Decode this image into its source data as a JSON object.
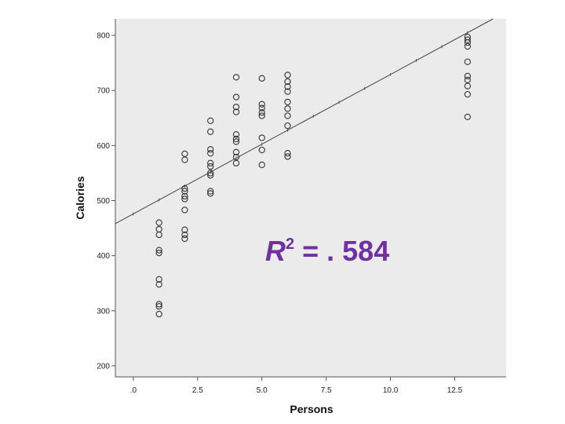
{
  "chart_data": {
    "type": "scatter",
    "xlabel": "Persons",
    "ylabel": "Calories",
    "xlim": [
      -0.7,
      14.5
    ],
    "ylim": [
      180,
      830
    ],
    "x_ticks": [
      0,
      2.5,
      5.0,
      7.5,
      10.0,
      12.5
    ],
    "x_tick_labels": [
      ".0",
      "2.5",
      "5.0",
      "7.5",
      "10.0",
      "12.5"
    ],
    "y_ticks": [
      200,
      300,
      400,
      500,
      600,
      700,
      800
    ],
    "y_tick_labels": [
      "200",
      "300",
      "400",
      "500",
      "600",
      "700",
      "800"
    ],
    "grid": false,
    "points": [
      [
        1,
        460
      ],
      [
        1,
        448
      ],
      [
        1,
        438
      ],
      [
        1,
        410
      ],
      [
        1,
        405
      ],
      [
        1,
        357
      ],
      [
        1,
        348
      ],
      [
        1,
        312
      ],
      [
        1,
        308
      ],
      [
        1,
        294
      ],
      [
        2,
        585
      ],
      [
        2,
        574
      ],
      [
        2,
        522
      ],
      [
        2,
        517
      ],
      [
        2,
        508
      ],
      [
        2,
        503
      ],
      [
        2,
        483
      ],
      [
        2,
        447
      ],
      [
        2,
        438
      ],
      [
        2,
        431
      ],
      [
        3,
        645
      ],
      [
        3,
        625
      ],
      [
        3,
        593
      ],
      [
        3,
        586
      ],
      [
        3,
        568
      ],
      [
        3,
        562
      ],
      [
        3,
        550
      ],
      [
        3,
        546
      ],
      [
        3,
        517
      ],
      [
        3,
        513
      ],
      [
        4,
        724
      ],
      [
        4,
        688
      ],
      [
        4,
        670
      ],
      [
        4,
        661
      ],
      [
        4,
        620
      ],
      [
        4,
        612
      ],
      [
        4,
        607
      ],
      [
        4,
        588
      ],
      [
        4,
        579
      ],
      [
        4,
        568
      ],
      [
        5,
        722
      ],
      [
        5,
        675
      ],
      [
        5,
        668
      ],
      [
        5,
        660
      ],
      [
        5,
        654
      ],
      [
        5,
        614
      ],
      [
        5,
        592
      ],
      [
        5,
        565
      ],
      [
        6,
        728
      ],
      [
        6,
        716
      ],
      [
        6,
        707
      ],
      [
        6,
        698
      ],
      [
        6,
        679
      ],
      [
        6,
        667
      ],
      [
        6,
        654
      ],
      [
        6,
        636
      ],
      [
        6,
        586
      ],
      [
        6,
        580
      ],
      [
        13,
        797
      ],
      [
        13,
        792
      ],
      [
        13,
        787
      ],
      [
        13,
        780
      ],
      [
        13,
        752
      ],
      [
        13,
        726
      ],
      [
        13,
        719
      ],
      [
        13,
        708
      ],
      [
        13,
        693
      ],
      [
        13,
        652
      ]
    ],
    "fit_line": {
      "intercept": 476,
      "slope": 25.3
    },
    "annotation": {
      "r2_base": "R",
      "r2_sup": "2",
      "r2_value": " = . 584"
    },
    "colors": {
      "plot_bg": "#ebebeb",
      "marker": "#333333",
      "fit_line": "#444444",
      "annotation": "#7030a0"
    }
  }
}
